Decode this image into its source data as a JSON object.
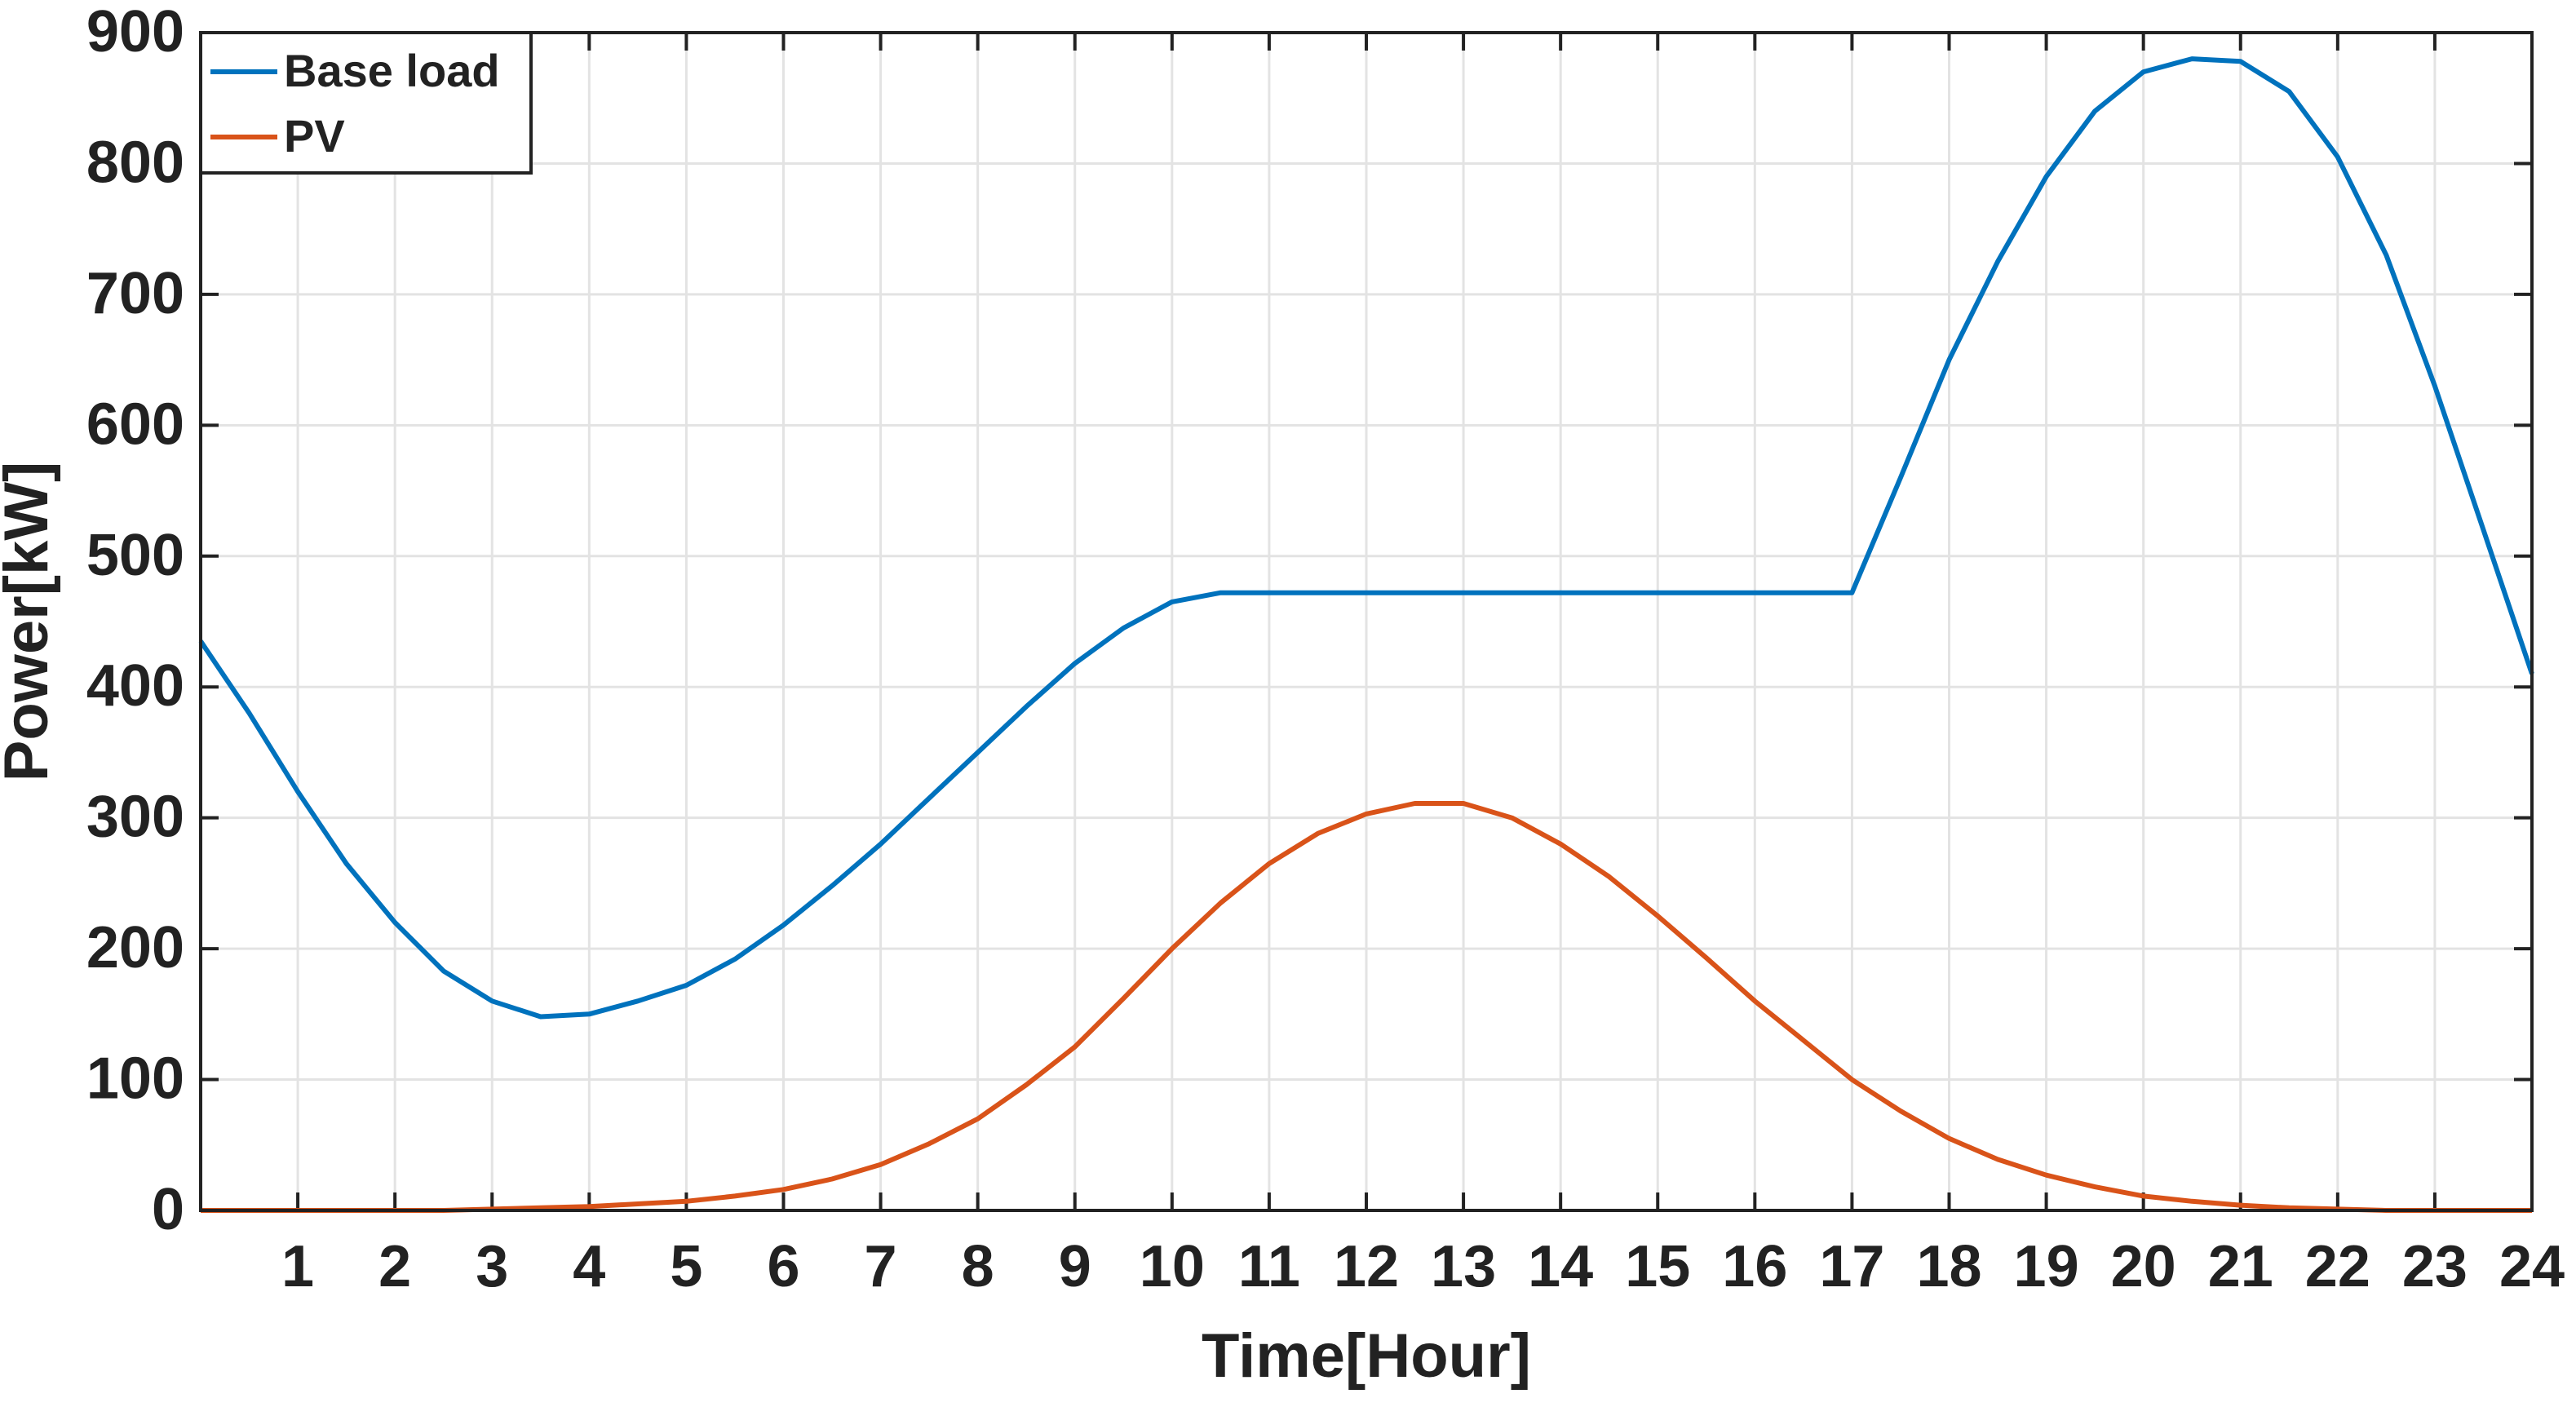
{
  "chart_data": {
    "type": "line",
    "x_label": "Time[Hour]",
    "y_label": "Power[kW]",
    "x": [
      0,
      0.5,
      1,
      1.5,
      2,
      2.5,
      3,
      3.5,
      4,
      4.5,
      5,
      5.5,
      6,
      6.5,
      7,
      7.5,
      8,
      8.5,
      9,
      9.5,
      10,
      10.5,
      11,
      11.5,
      12,
      12.5,
      13,
      13.5,
      14,
      14.5,
      15,
      15.5,
      16,
      16.5,
      17,
      17.5,
      18,
      18.5,
      19,
      19.5,
      20,
      20.5,
      21,
      21.5,
      22,
      22.5,
      23,
      23.5,
      24
    ],
    "series": [
      {
        "name": "Base load",
        "color": "#0072bd",
        "values": [
          435,
          380,
          320,
          265,
          220,
          183,
          160,
          148,
          150,
          160,
          172,
          192,
          218,
          248,
          280,
          315,
          350,
          385,
          418,
          445,
          465,
          472,
          472,
          472,
          472,
          472,
          472,
          472,
          472,
          472,
          472,
          472,
          472,
          472,
          472,
          560,
          650,
          725,
          790,
          840,
          870,
          880,
          878,
          855,
          805,
          730,
          630,
          520,
          410
        ]
      },
      {
        "name": "PV",
        "color": "#d95319",
        "values": [
          0,
          0,
          0,
          0,
          0,
          0,
          1,
          2,
          3,
          5,
          7,
          11,
          16,
          24,
          35,
          51,
          70,
          96,
          125,
          162,
          200,
          235,
          265,
          288,
          303,
          311,
          311,
          300,
          280,
          255,
          225,
          193,
          160,
          130,
          100,
          76,
          55,
          39,
          27,
          18,
          11,
          7,
          4,
          2,
          1,
          0,
          0,
          0,
          0
        ]
      }
    ],
    "xlim": [
      0,
      24
    ],
    "xticks": [
      1,
      2,
      3,
      4,
      5,
      6,
      7,
      8,
      9,
      10,
      11,
      12,
      13,
      14,
      15,
      16,
      17,
      18,
      19,
      20,
      21,
      22,
      23,
      24
    ],
    "ylim": [
      0,
      900
    ],
    "yticks": [
      0,
      100,
      200,
      300,
      400,
      500,
      600,
      700,
      800,
      900
    ],
    "grid": true,
    "legend": "upper-left"
  }
}
